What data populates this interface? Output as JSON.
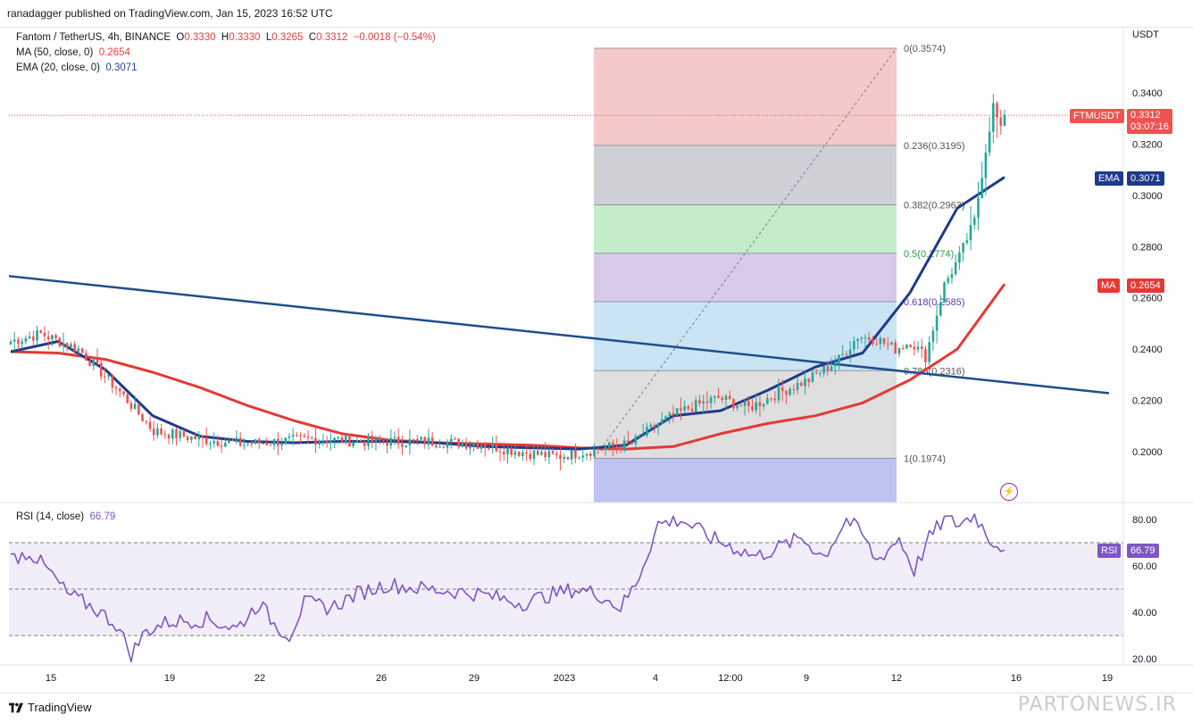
{
  "header": {
    "published": "ranadagger published on TradingView.com, Jan 15, 2023 16:52 UTC"
  },
  "legend": {
    "symbol": "Fantom / TetherUS, 4h, BINANCE",
    "o_label": "O",
    "o": "0.3330",
    "h_label": "H",
    "h": "0.3330",
    "l_label": "L",
    "l": "0.3265",
    "c_label": "C",
    "c": "0.3312",
    "change": "−0.0018 (−0.54%)",
    "ma_label": "MA (50, close, 0)",
    "ma_value": "0.2654",
    "ema_label": "EMA (20, close, 0)",
    "ema_value": "0.3071",
    "rsi_label": "RSI (14, close)",
    "rsi_value": "66.79"
  },
  "price_axis": {
    "currency": "USDT",
    "ticks": [
      "0.3400",
      "0.3200",
      "0.3000",
      "0.2800",
      "0.2600",
      "0.2400",
      "0.2200",
      "0.2000"
    ]
  },
  "rsi_axis": {
    "ticks": [
      "80.00",
      "60.00",
      "40.00",
      "20.00"
    ]
  },
  "time_axis": {
    "ticks": [
      "15",
      "19",
      "22",
      "26",
      "29",
      "2023",
      "4",
      "12:00",
      "9",
      "12",
      "16",
      "19"
    ]
  },
  "tags": {
    "symbol_tag": "FTMUSDT",
    "price": "0.3312",
    "countdown": "03:07:16",
    "ema_tag": "EMA",
    "ema_price": "0.3071",
    "ma_tag": "MA",
    "ma_price": "0.2654",
    "rsi_tag": "RSI",
    "rsi_price": "66.79"
  },
  "fib_levels": [
    {
      "label": "0(0.3574)",
      "value": 0.3574
    },
    {
      "label": "0.236(0.3195)",
      "value": 0.3195
    },
    {
      "label": "0.382(0.2963)",
      "value": 0.2963
    },
    {
      "label": "0.5(0.2774)",
      "value": 0.2774
    },
    {
      "label": "0.618(0.2585)",
      "value": 0.2585
    },
    {
      "label": "0.786(0.2316)",
      "value": 0.2316
    },
    {
      "label": "1(0.1974)",
      "value": 0.1974
    }
  ],
  "footer": {
    "brand": "TradingView",
    "watermark": "PARTONEWS.IR"
  },
  "colors": {
    "up": "#26a69a",
    "down": "#ef5350",
    "ema": "#1e3a8a",
    "ma": "#e53935",
    "trendline": "#1f4e8c",
    "rsi": "#7e57c2",
    "price_line": "#ef5350"
  },
  "chart_data": {
    "type": "line",
    "title": "Fantom / TetherUS, 4h, BINANCE",
    "ylabel": "USDT",
    "ylim": [
      0.185,
      0.362
    ],
    "x_ticks": [
      "15",
      "19",
      "22",
      "26",
      "29",
      "2023",
      "4",
      "12:00",
      "9",
      "12",
      "16",
      "19"
    ],
    "series": [
      {
        "name": "MA (50, close, 0)",
        "last": 0.2654,
        "values": [
          0.239,
          0.2385,
          0.236,
          0.231,
          0.225,
          0.218,
          0.212,
          0.207,
          0.2045,
          0.2035,
          0.203,
          0.2025,
          0.2015,
          0.201,
          0.202,
          0.207,
          0.211,
          0.214,
          0.219,
          0.228,
          0.24,
          0.2654
        ]
      },
      {
        "name": "EMA (20, close, 0)",
        "last": 0.3071,
        "values": [
          0.239,
          0.243,
          0.232,
          0.214,
          0.206,
          0.204,
          0.2035,
          0.204,
          0.204,
          0.2035,
          0.202,
          0.2015,
          0.201,
          0.2025,
          0.214,
          0.216,
          0.224,
          0.233,
          0.2385,
          0.262,
          0.295,
          0.3071
        ]
      },
      {
        "name": "Close",
        "last": 0.3312
      },
      {
        "name": "RSI (14, close)",
        "last": 66.79
      }
    ],
    "ohlc_last": {
      "open": 0.333,
      "high": 0.333,
      "low": 0.3265,
      "close": 0.3312
    },
    "fibonacci": {
      "high": 0.3574,
      "low": 0.1974,
      "levels": [
        0,
        0.236,
        0.382,
        0.5,
        0.618,
        0.786,
        1
      ],
      "prices": [
        0.3574,
        0.3195,
        0.2963,
        0.2774,
        0.2585,
        0.2316,
        0.1974
      ]
    },
    "rsi": {
      "ylim": [
        15,
        88
      ],
      "bands": [
        30,
        50,
        70
      ]
    }
  }
}
